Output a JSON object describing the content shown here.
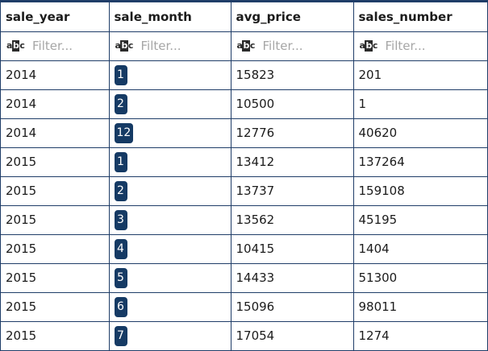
{
  "columns": {
    "sale_year": "sale_year",
    "sale_month": "sale_month",
    "avg_price": "avg_price",
    "sales_number": "sales_number"
  },
  "filter": {
    "placeholder": "Filter...",
    "icon": "abc-text-type-icon"
  },
  "colors": {
    "border": "#1f3d68",
    "badge": "#153a64"
  },
  "rows": [
    {
      "sale_year": "2014",
      "sale_month": "1",
      "avg_price": "15823",
      "sales_number": "201"
    },
    {
      "sale_year": "2014",
      "sale_month": "2",
      "avg_price": "10500",
      "sales_number": "1"
    },
    {
      "sale_year": "2014",
      "sale_month": "12",
      "avg_price": "12776",
      "sales_number": "40620"
    },
    {
      "sale_year": "2015",
      "sale_month": "1",
      "avg_price": "13412",
      "sales_number": "137264"
    },
    {
      "sale_year": "2015",
      "sale_month": "2",
      "avg_price": "13737",
      "sales_number": "159108"
    },
    {
      "sale_year": "2015",
      "sale_month": "3",
      "avg_price": "13562",
      "sales_number": "45195"
    },
    {
      "sale_year": "2015",
      "sale_month": "4",
      "avg_price": "10415",
      "sales_number": "1404"
    },
    {
      "sale_year": "2015",
      "sale_month": "5",
      "avg_price": "14433",
      "sales_number": "51300"
    },
    {
      "sale_year": "2015",
      "sale_month": "6",
      "avg_price": "15096",
      "sales_number": "98011"
    },
    {
      "sale_year": "2015",
      "sale_month": "7",
      "avg_price": "17054",
      "sales_number": "1274"
    }
  ]
}
